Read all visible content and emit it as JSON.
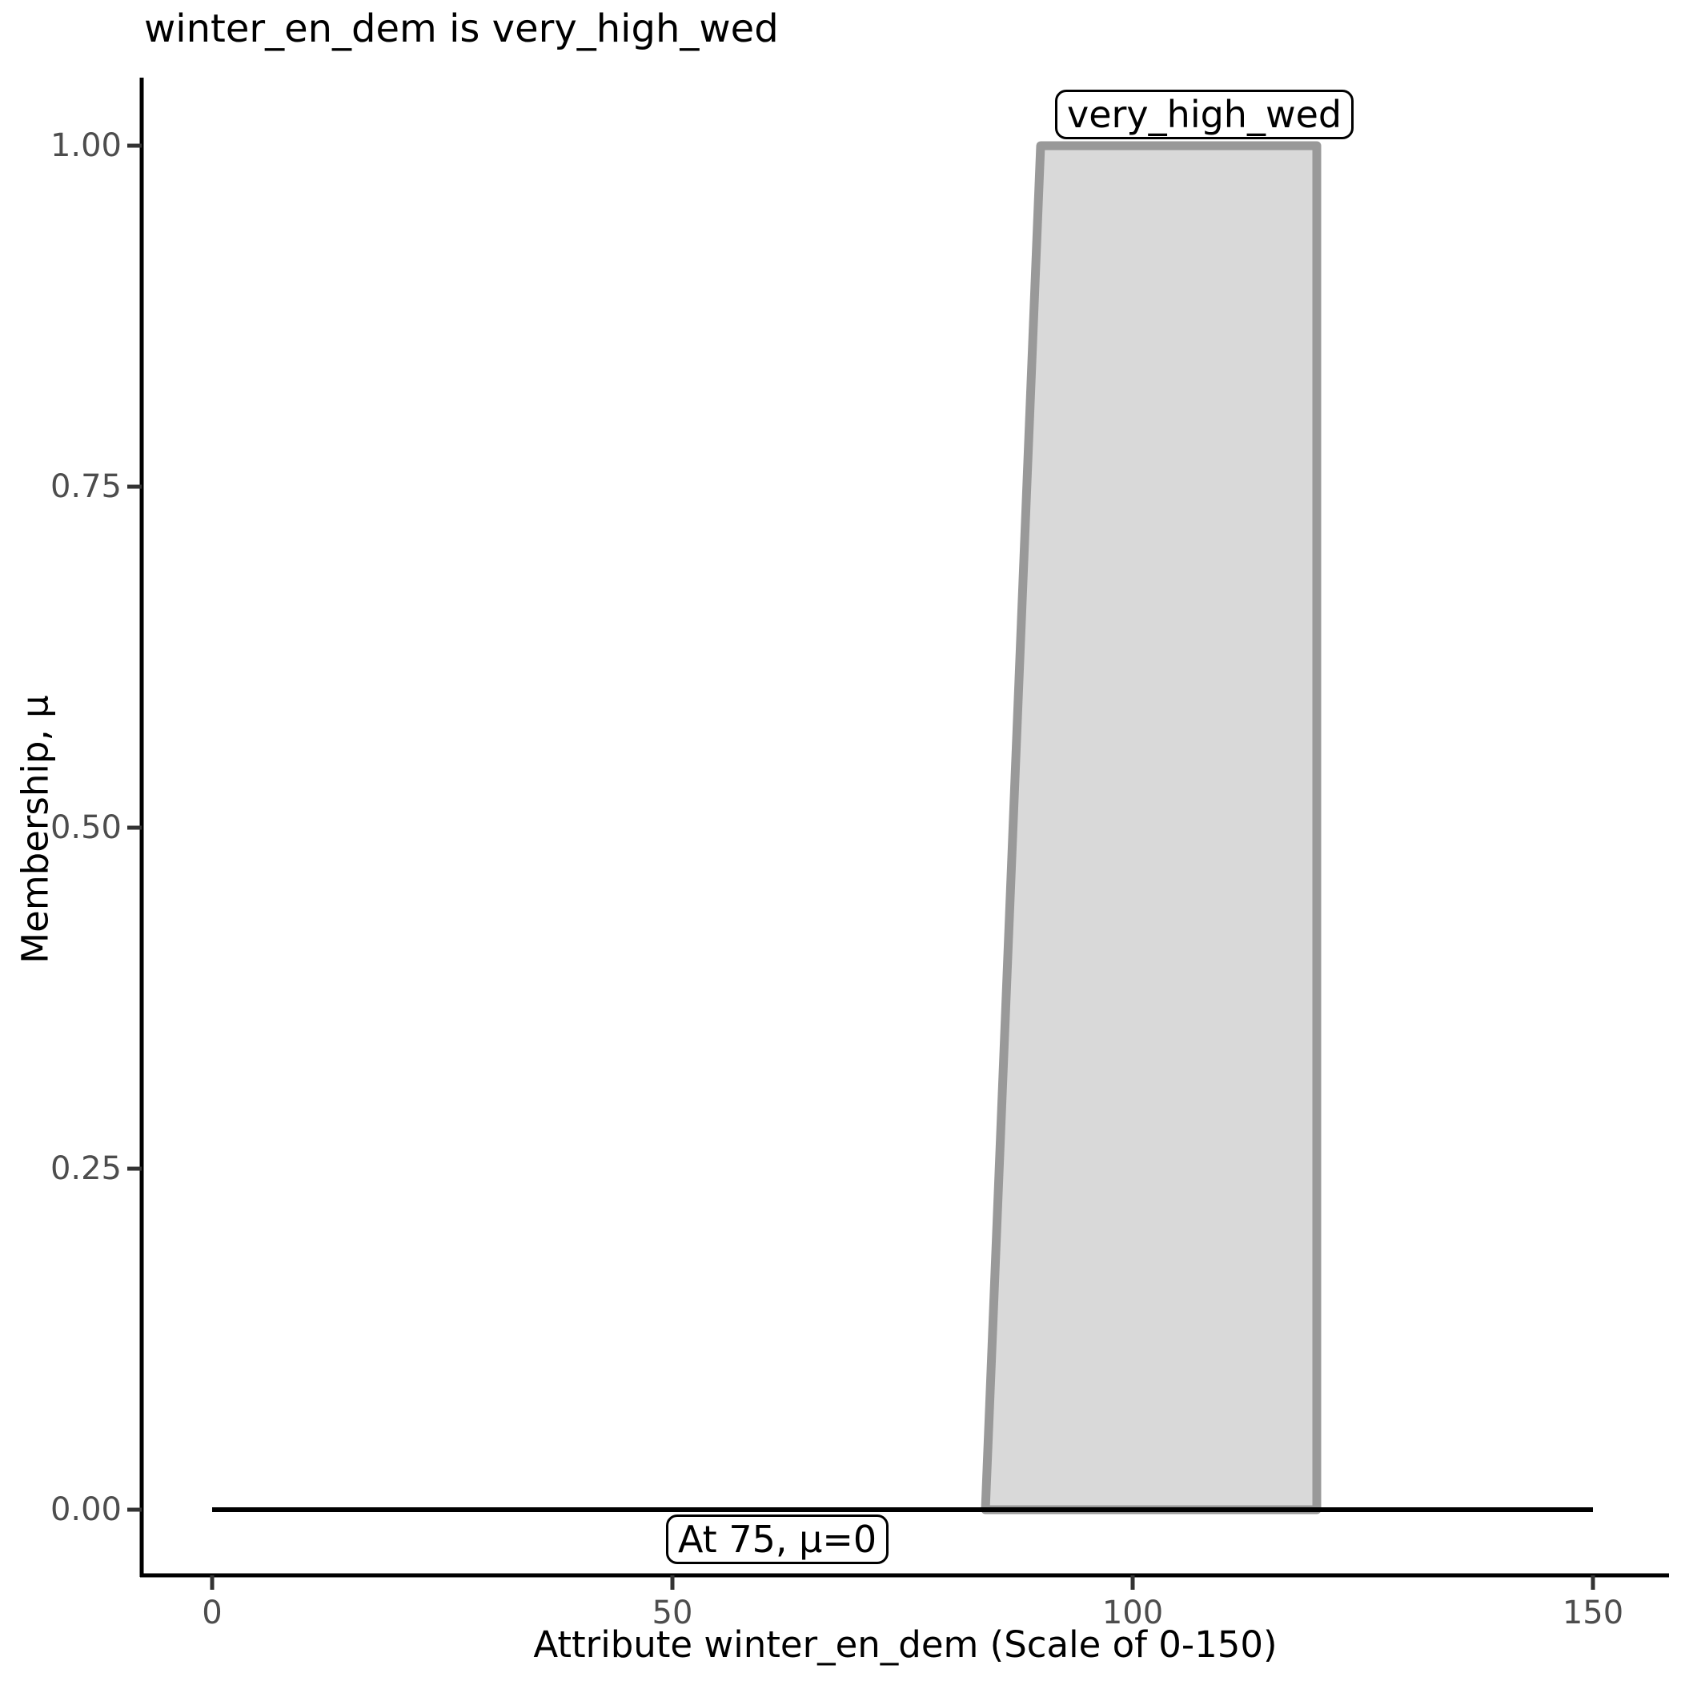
{
  "chart_data": {
    "type": "area",
    "title": "winter_en_dem is very_high_wed",
    "xlabel": "Attribute winter_en_dem (Scale of 0-150)",
    "ylabel": "Membership, μ",
    "xlim": [
      0,
      157
    ],
    "ylim": [
      0,
      1.06
    ],
    "grid": false,
    "legend": false,
    "x_ticks": [
      {
        "value": 0,
        "label": "0"
      },
      {
        "value": 50,
        "label": "50"
      },
      {
        "value": 100,
        "label": "100"
      },
      {
        "value": 150,
        "label": "150"
      }
    ],
    "y_ticks": [
      {
        "value": 0.0,
        "label": "0.00"
      },
      {
        "value": 0.25,
        "label": "0.25"
      },
      {
        "value": 0.5,
        "label": "0.50"
      },
      {
        "value": 0.75,
        "label": "0.75"
      },
      {
        "value": 1.0,
        "label": "1.00"
      }
    ],
    "series": [
      {
        "name": "very_high_wed",
        "shape": "trapezoid-membership-function",
        "vertices_x": [
          84,
          90,
          120,
          120
        ],
        "vertices_mu": [
          0,
          1,
          1,
          0
        ],
        "fill_color": "#d9d9d9",
        "stroke_color": "#999999"
      }
    ],
    "baseline": {
      "x_start": 0,
      "x_end": 150,
      "mu": 0,
      "color": "#000000"
    },
    "annotations": [
      {
        "text": "very_high_wed",
        "position": "above membership plateau"
      },
      {
        "text": "At 75, μ=0",
        "position": "below zero line near x=75"
      }
    ]
  },
  "colors": {
    "axis_line": "#000000",
    "tick_mark": "#333333",
    "tick_label": "#4d4d4d",
    "title_text": "#000000",
    "background": "#ffffff"
  }
}
